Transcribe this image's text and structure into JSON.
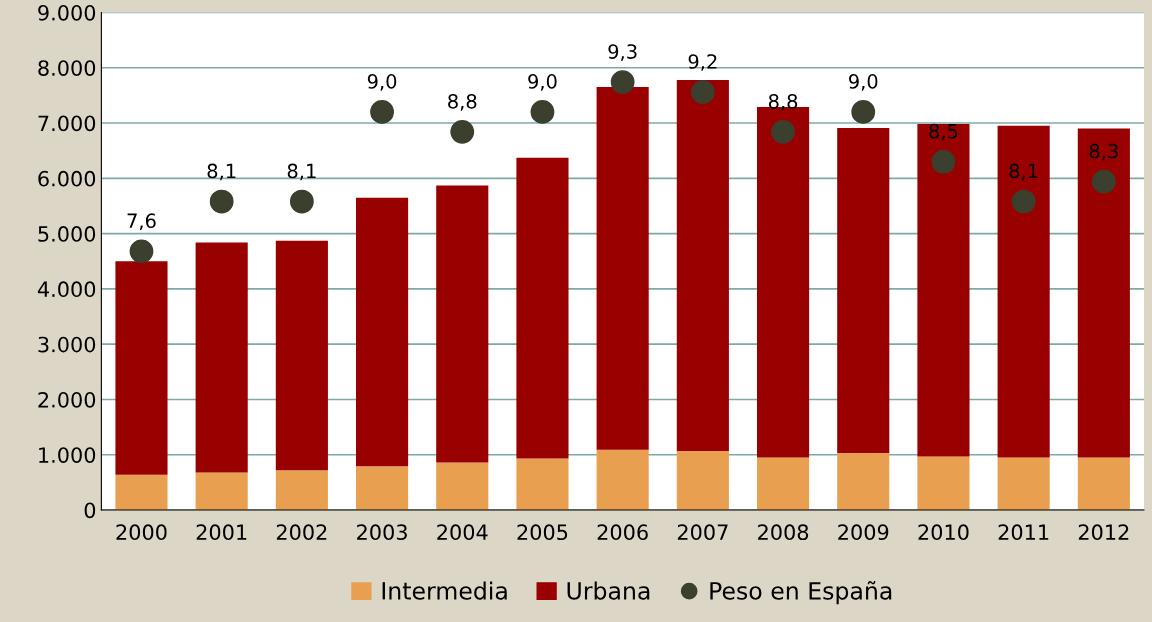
{
  "chart_data": {
    "type": "bar",
    "stacked": true,
    "categories": [
      "2000",
      "2001",
      "2002",
      "2003",
      "2004",
      "2005",
      "2006",
      "2007",
      "2008",
      "2009",
      "2010",
      "2011",
      "2012"
    ],
    "series": [
      {
        "name": "Intermedia",
        "color": "#e8a050",
        "values": [
          640,
          680,
          720,
          790,
          860,
          930,
          1090,
          1070,
          950,
          1030,
          970,
          950,
          950
        ]
      },
      {
        "name": "Urbana",
        "color": "#990000",
        "values": [
          3860,
          4160,
          4150,
          4860,
          5010,
          5440,
          6560,
          6710,
          6340,
          5880,
          6010,
          6000,
          5950
        ]
      },
      {
        "name": "Peso en España",
        "type": "scatter",
        "axis": "y2",
        "color": "#3a3f2e",
        "values": [
          7.6,
          8.1,
          8.1,
          9.0,
          8.8,
          9.0,
          9.3,
          9.2,
          8.8,
          9.0,
          8.5,
          8.1,
          8.3
        ],
        "value_labels": [
          "7,6",
          "8,1",
          "8,1",
          "9,0",
          "8,8",
          "9,0",
          "9,3",
          "9,2",
          "8,8",
          "9,0",
          "8,5",
          "8,1",
          "8,3"
        ]
      }
    ],
    "ylim": [
      0,
      9000
    ],
    "yticks": [
      0,
      {
        "value": 1000,
        "label": "1.000"
      },
      {
        "value": 2000,
        "label": "2.000"
      },
      {
        "value": 3000,
        "label": "3.000"
      },
      {
        "value": 4000,
        "label": "4.000"
      },
      {
        "value": 5000,
        "label": "5.000"
      },
      {
        "value": 6000,
        "label": "6.000"
      },
      {
        "value": 7000,
        "label": "7.000"
      },
      {
        "value": 8000,
        "label": "8.000"
      },
      {
        "value": 9000,
        "label": "9.000"
      }
    ],
    "y2lim": [
      5,
      10
    ],
    "grid": "y",
    "legend": "bottom",
    "marker": "circle"
  }
}
